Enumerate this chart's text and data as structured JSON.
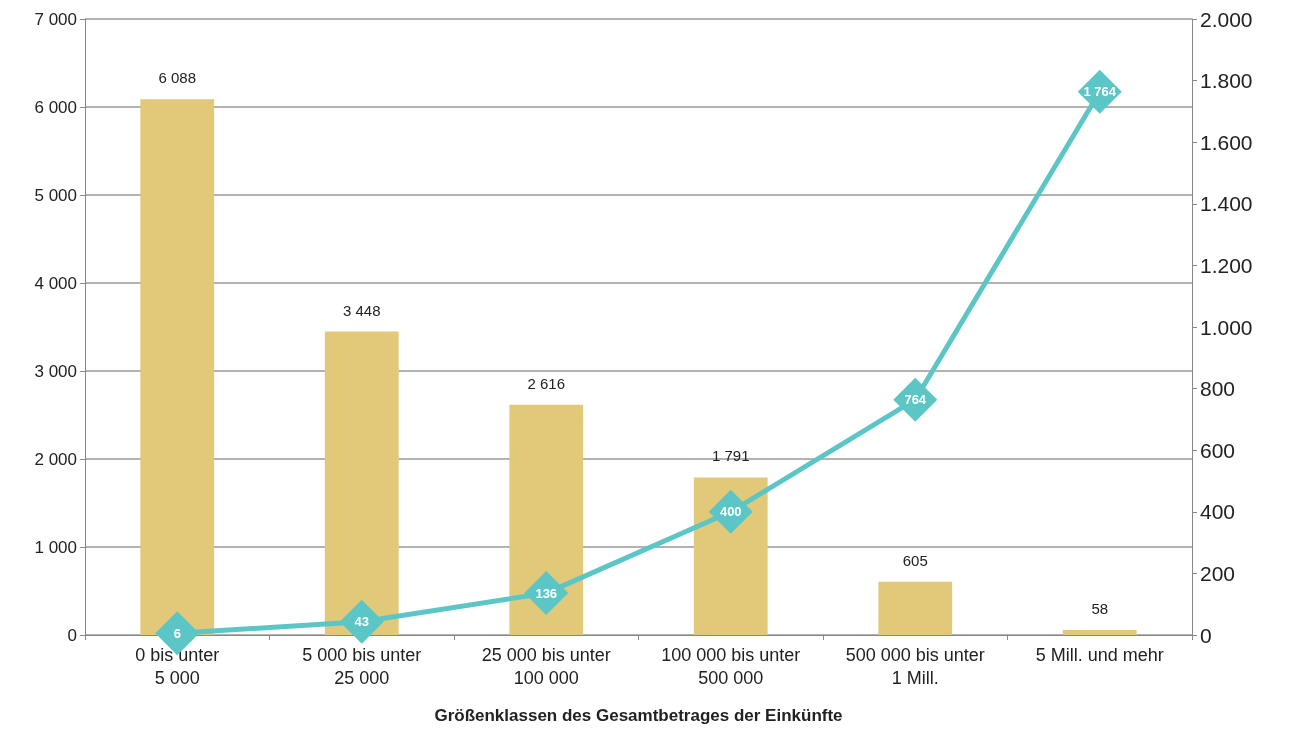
{
  "chart_data": {
    "type": "bar",
    "xlabel": "Größenklassen des Gesamtbetrages der Einkünfte",
    "categories": [
      "0 bis unter\n5 000",
      "5 000 bis unter\n25 000",
      "25 000 bis unter\n100 000",
      "100 000 bis unter\n500 000",
      "500 000 bis unter\n1 Mill.",
      "5 Mill. und mehr"
    ],
    "series": [
      {
        "color": "#e2c97a",
        "values": [
          6088,
          3448,
          2616,
          1791,
          605,
          58
        ],
        "value_labels": [
          "6 088",
          "3 448",
          "2 616",
          "1 791",
          "605",
          "58"
        ]
      },
      {
        "type": "line",
        "axis": "y2",
        "color": "#5cc6c6",
        "marker": "diamond",
        "values": [
          6,
          43,
          136,
          400,
          764,
          1764
        ],
        "value_labels": [
          "6",
          "43",
          "136",
          "400",
          "764",
          "1 764"
        ]
      }
    ],
    "ylim": [
      0,
      7000
    ],
    "yticks": [
      {
        "value": 0,
        "label": "0"
      },
      {
        "value": 1000,
        "label": "1 000"
      },
      {
        "value": 2000,
        "label": "2 000"
      },
      {
        "value": 3000,
        "label": "3 000"
      },
      {
        "value": 4000,
        "label": "4 000"
      },
      {
        "value": 5000,
        "label": "5 000"
      },
      {
        "value": 6000,
        "label": "6 000"
      },
      {
        "value": 7000,
        "label": "7 000"
      }
    ],
    "y2lim": [
      0,
      2000
    ],
    "y2ticks": [
      0,
      200,
      400,
      600,
      800,
      {
        "value": 1000,
        "label": "1.000"
      },
      {
        "value": 1200,
        "label": "1.200"
      },
      {
        "value": 1400,
        "label": "1.400"
      },
      {
        "value": 1600,
        "label": "1.600"
      },
      {
        "value": 1800,
        "label": "1.800"
      },
      {
        "value": 2000,
        "label": "2.000"
      }
    ],
    "grid": "y"
  }
}
